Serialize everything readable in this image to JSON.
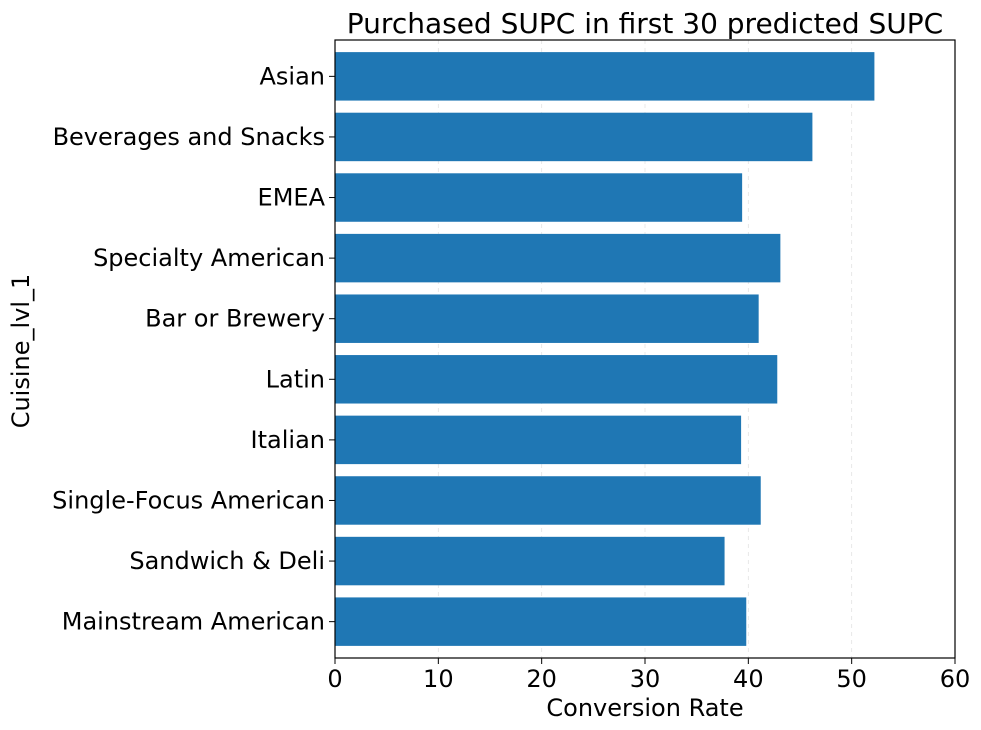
{
  "chart_data": {
    "type": "bar",
    "orientation": "horizontal",
    "title": "Purchased SUPC in first 30 predicted SUPC",
    "xlabel": "Conversion Rate",
    "ylabel": "Cuisine_lvl_1",
    "categories": [
      "Asian",
      "Beverages and Snacks",
      "EMEA",
      "Specialty American",
      "Bar or Brewery",
      "Latin",
      "Italian",
      "Single-Focus American",
      "Sandwich & Deli",
      "Mainstream American"
    ],
    "values": [
      52.2,
      46.2,
      39.4,
      43.1,
      41.0,
      42.8,
      39.3,
      41.2,
      37.7,
      39.8
    ],
    "xlim": [
      0,
      60
    ],
    "xticks": [
      "0",
      "10",
      "20",
      "30",
      "40",
      "50",
      "60"
    ],
    "grid": "vertical dashed",
    "bar_color": "#1f77b4"
  }
}
